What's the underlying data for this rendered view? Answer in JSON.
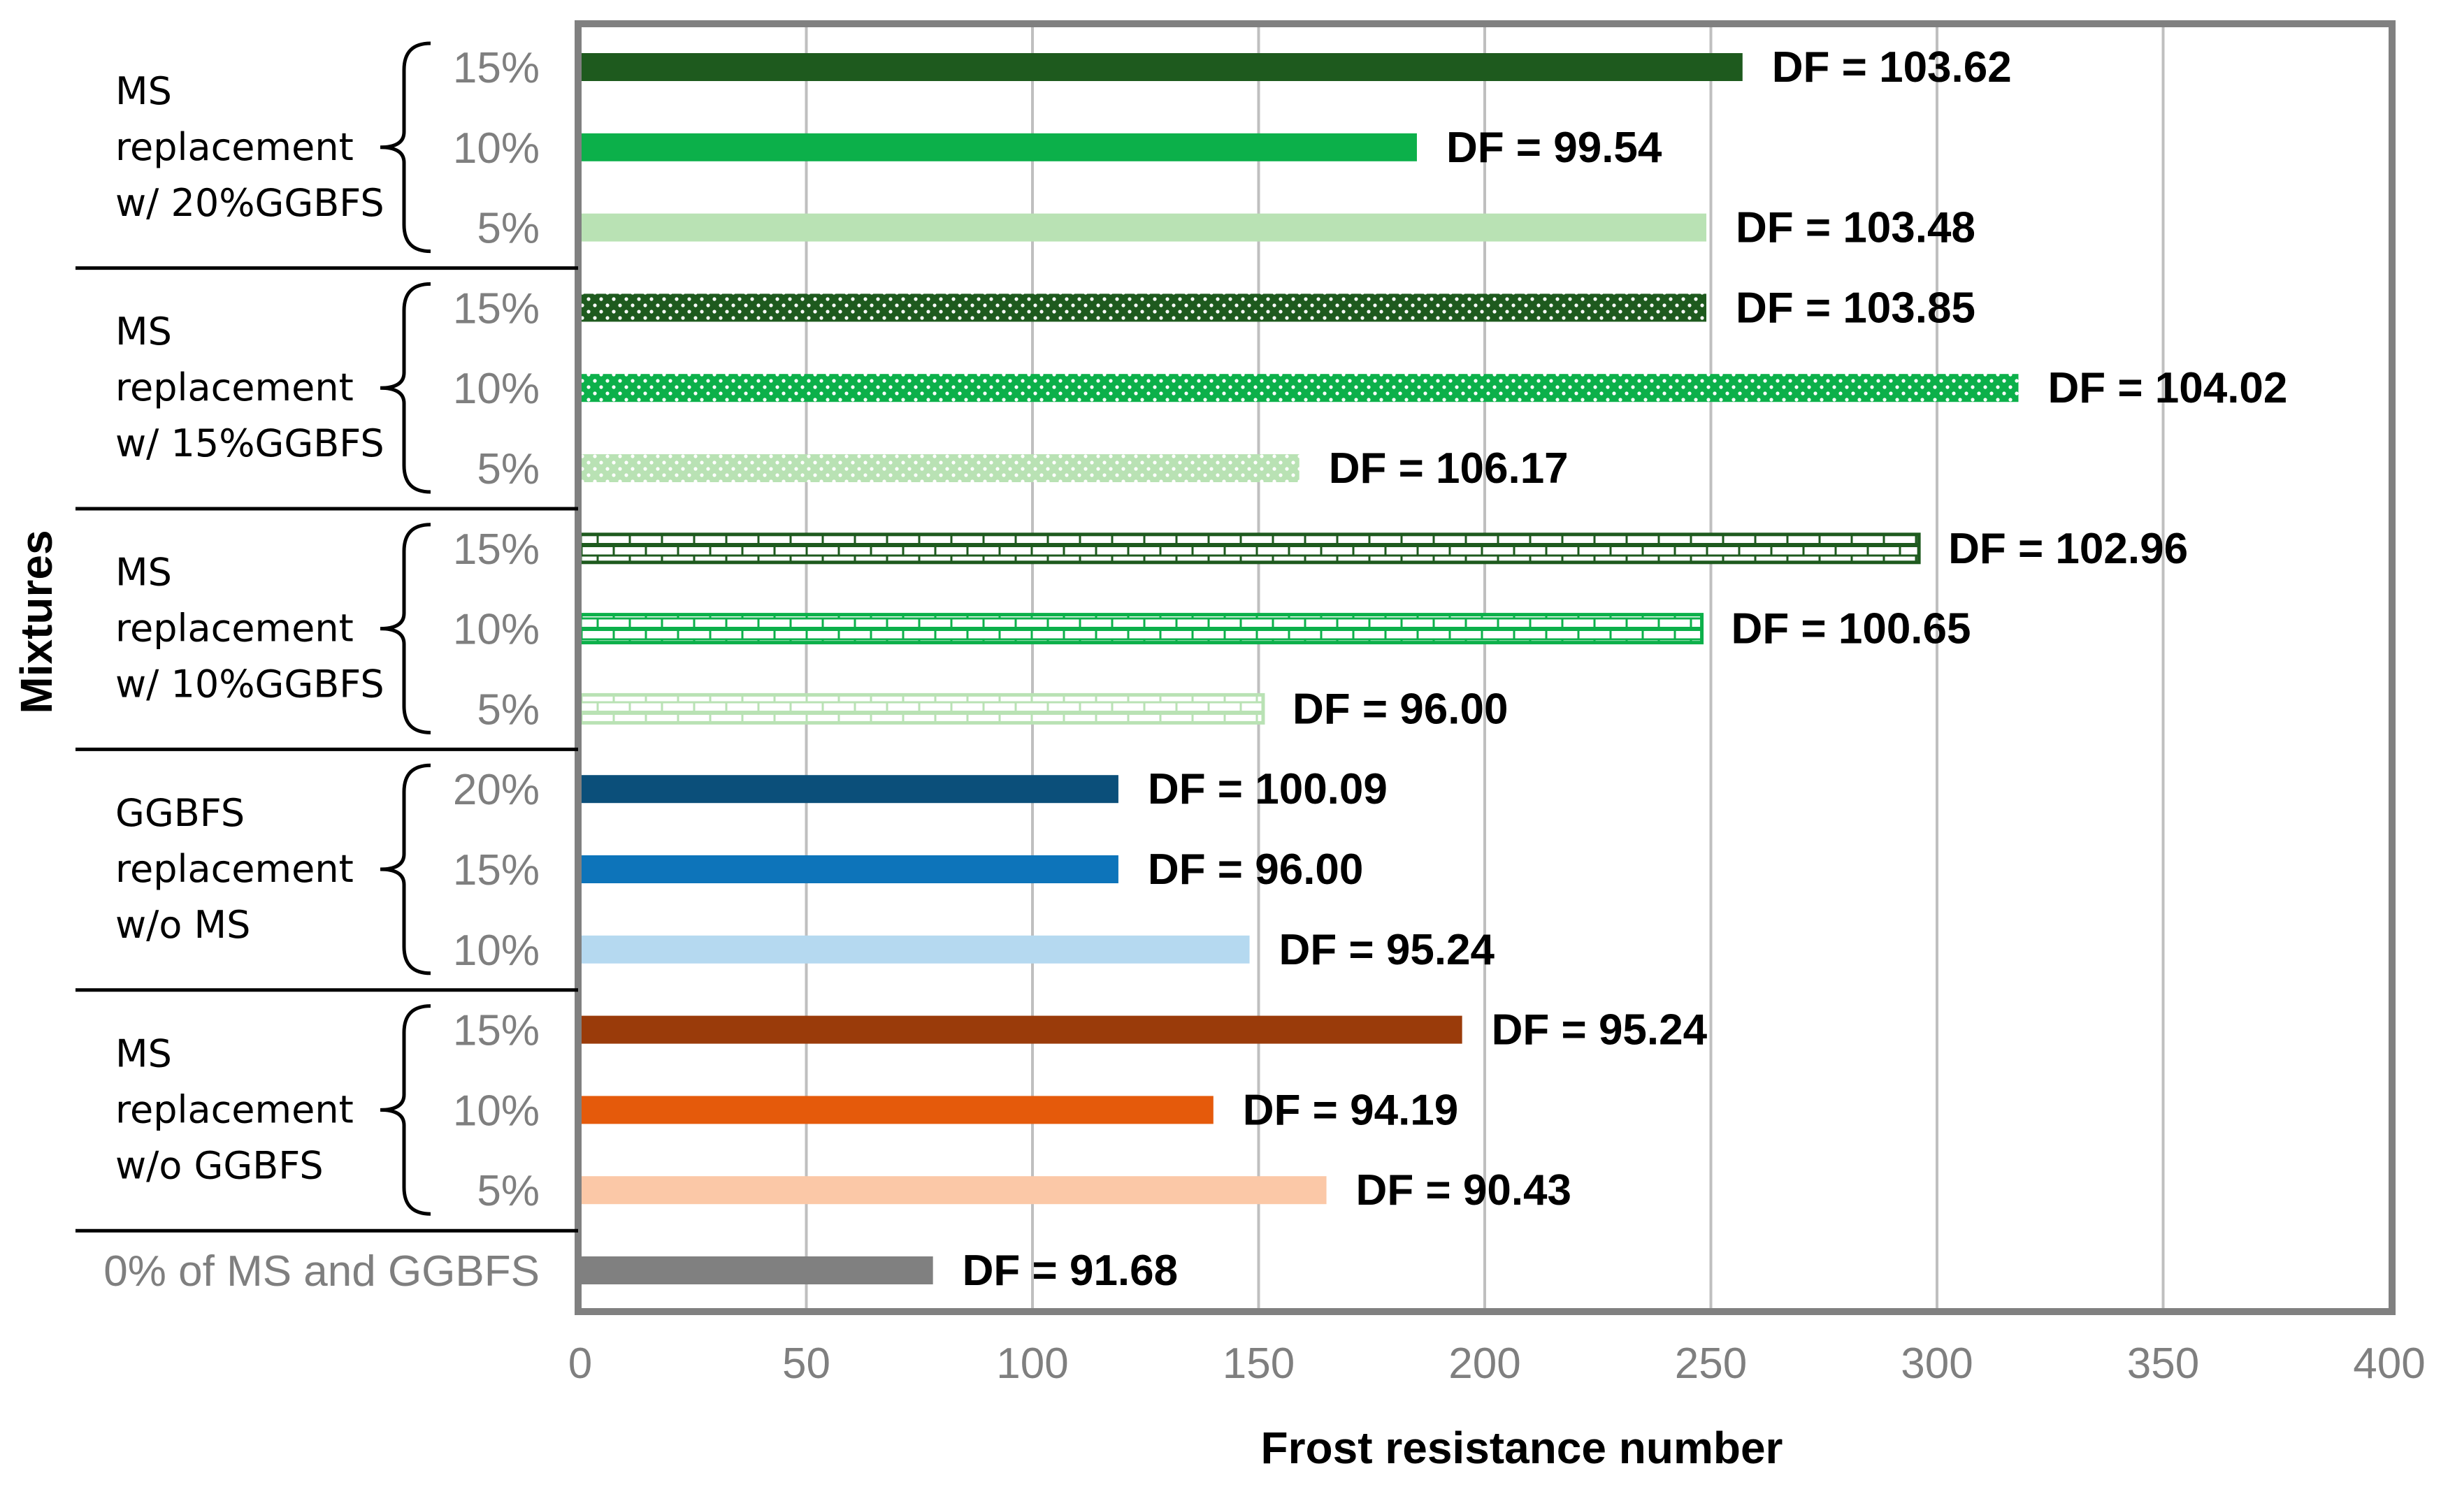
{
  "chart_data": {
    "type": "bar",
    "orientation": "horizontal",
    "xlabel": "Frost resistance number",
    "ylabel": "Mixtures",
    "xlim": [
      0,
      400
    ],
    "xticks": [
      "0",
      "50",
      "100",
      "150",
      "200",
      "250",
      "300",
      "350",
      "400"
    ],
    "grid": true,
    "groups": [
      {
        "label_lines": [
          "MS",
          "replacement",
          "w/ 20%GGBFS"
        ],
        "bars": [
          {
            "label": "15%",
            "value": 257,
            "data_label": "DF = 103.62",
            "color": "#1e5a1e",
            "pattern": "solid"
          },
          {
            "label": "10%",
            "value": 185,
            "data_label": "DF = 99.54",
            "color": "#0cb04a",
            "pattern": "solid"
          },
          {
            "label": "5%",
            "value": 249,
            "data_label": "DF = 103.48",
            "color": "#b9e2b4",
            "pattern": "solid"
          }
        ]
      },
      {
        "label_lines": [
          "MS",
          "replacement",
          "w/ 15%GGBFS"
        ],
        "bars": [
          {
            "label": "15%",
            "value": 249,
            "data_label": "DF = 103.85",
            "color": "#1e5a1e",
            "pattern": "dots"
          },
          {
            "label": "10%",
            "value": 318,
            "data_label": "DF = 104.02",
            "color": "#0cb04a",
            "pattern": "dots"
          },
          {
            "label": "5%",
            "value": 159,
            "data_label": "DF = 106.17",
            "color": "#b9e2b4",
            "pattern": "dots"
          }
        ]
      },
      {
        "label_lines": [
          "MS",
          "replacement",
          "w/ 10%GGBFS"
        ],
        "bars": [
          {
            "label": "15%",
            "value": 296,
            "data_label": "DF = 102.96",
            "color": "#1e5a1e",
            "pattern": "brick"
          },
          {
            "label": "10%",
            "value": 248,
            "data_label": "DF = 100.65",
            "color": "#0cb04a",
            "pattern": "brick"
          },
          {
            "label": "5%",
            "value": 151,
            "data_label": "DF = 96.00",
            "color": "#b9e2b4",
            "pattern": "brick"
          }
        ]
      },
      {
        "label_lines": [
          "GGBFS",
          "replacement",
          "w/o MS"
        ],
        "bars": [
          {
            "label": "20%",
            "value": 119,
            "data_label": "DF = 100.09",
            "color": "#0b4f7a",
            "pattern": "solid"
          },
          {
            "label": "15%",
            "value": 119,
            "data_label": "DF = 96.00",
            "color": "#0d74ba",
            "pattern": "solid"
          },
          {
            "label": "10%",
            "value": 148,
            "data_label": "DF = 95.24",
            "color": "#b5d9f0",
            "pattern": "solid"
          }
        ]
      },
      {
        "label_lines": [
          "MS",
          "replacement",
          "w/o GGBFS"
        ],
        "bars": [
          {
            "label": "15%",
            "value": 195,
            "data_label": "DF = 95.24",
            "color": "#9a3b0a",
            "pattern": "solid"
          },
          {
            "label": "10%",
            "value": 140,
            "data_label": "DF = 94.19",
            "color": "#e55a0b",
            "pattern": "solid"
          },
          {
            "label": "5%",
            "value": 165,
            "data_label": "DF = 90.43",
            "color": "#fbc8a7",
            "pattern": "solid"
          }
        ]
      },
      {
        "label_lines": [],
        "bars": [
          {
            "label": "0% of MS and GGBFS",
            "value": 78,
            "data_label": "DF = 91.68",
            "color": "#808080",
            "pattern": "solid"
          }
        ]
      }
    ]
  }
}
